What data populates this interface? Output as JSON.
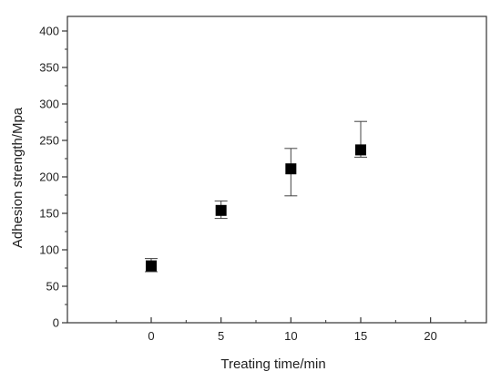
{
  "chart_data": {
    "type": "scatter",
    "title": "",
    "xlabel": "Treating time/min",
    "ylabel": "Adhesion strength/Mpa",
    "xlim": [
      -6,
      24
    ],
    "ylim": [
      0,
      420
    ],
    "xticks": [
      0,
      5,
      10,
      15,
      20
    ],
    "yticks": [
      0,
      50,
      100,
      150,
      200,
      250,
      300,
      350,
      400
    ],
    "grid": false,
    "legend": "none",
    "marker": "square",
    "colors": {
      "marker": "#000000",
      "axis": "#333333",
      "errorbar": "#444444"
    },
    "series": [
      {
        "x": [
          0,
          5,
          10,
          15
        ],
        "y": [
          78,
          154,
          211,
          237
        ],
        "error_low": [
          70,
          143,
          174,
          227
        ],
        "error_high": [
          88,
          167,
          239,
          276
        ]
      }
    ]
  }
}
